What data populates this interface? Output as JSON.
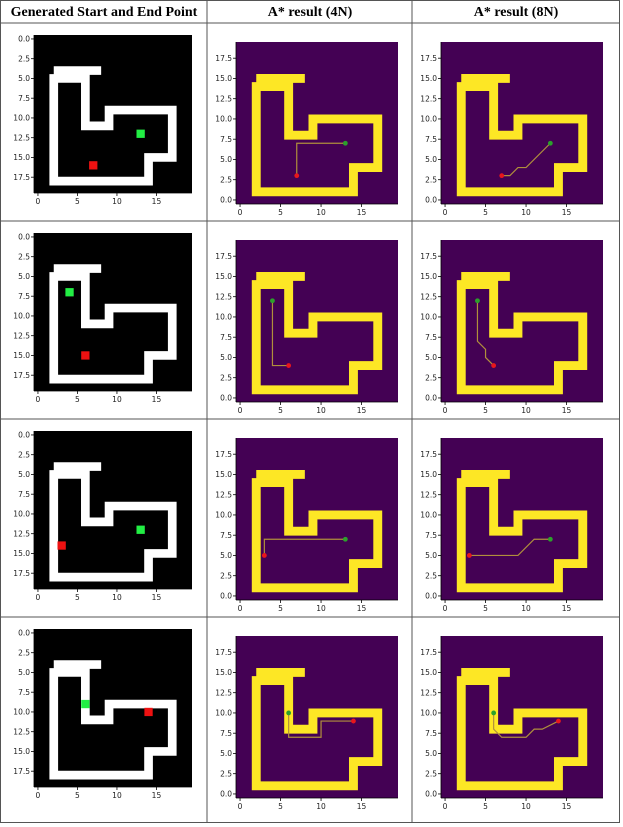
{
  "headers": [
    "Generated Start and End Point",
    "A* result (4N)",
    "A* result (8N)"
  ],
  "colors": {
    "gen_background": "#000000",
    "gen_wall": "#ffffff",
    "start_color": "#22ee44",
    "end_color": "#ee1111",
    "result_background": "#440154",
    "result_wall": "#fde725",
    "path_color": "#b08f3c",
    "result_start_color": "#2ca02c",
    "result_end_color": "#e8161c"
  },
  "chart_data": [
    {
      "type": "scatter",
      "title": "Generated Start and End Point",
      "axes": [
        {
          "name": "x",
          "ticks": [
            0,
            5,
            10,
            15
          ],
          "range": [
            -0.5,
            19.5
          ]
        },
        {
          "name": "y",
          "ticks": [
            "0.0",
            "2.5",
            "5.0",
            "7.5",
            "10.0",
            "12.5",
            "15.0",
            "17.5"
          ],
          "range": [
            19.5,
            -0.5
          ],
          "inverted": true
        }
      ],
      "walls_outline": [
        [
          [
            2,
            5
          ],
          [
            6,
            5
          ],
          [
            6,
            11
          ],
          [
            9,
            11
          ],
          [
            9,
            9
          ],
          [
            17,
            9
          ],
          [
            17,
            15
          ],
          [
            14,
            15
          ],
          [
            14,
            18
          ],
          [
            2,
            18
          ]
        ],
        [
          [
            2,
            4
          ],
          [
            8,
            4
          ]
        ]
      ],
      "rows": [
        {
          "start": [
            13,
            12
          ],
          "end": [
            7,
            16
          ]
        },
        {
          "start": [
            4,
            7
          ],
          "end": [
            6,
            15
          ]
        },
        {
          "start": [
            13,
            12
          ],
          "end": [
            3,
            14
          ]
        },
        {
          "start": [
            6,
            9
          ],
          "end": [
            14,
            10
          ]
        }
      ]
    },
    {
      "type": "line",
      "title": "A* result (4N)",
      "axes": [
        {
          "name": "x",
          "ticks": [
            0,
            5,
            10,
            15
          ],
          "range": [
            -0.5,
            19.5
          ]
        },
        {
          "name": "y",
          "ticks": [
            "0.0",
            "2.5",
            "5.0",
            "7.5",
            "10.0",
            "12.5",
            "15.0",
            "17.5"
          ],
          "range": [
            -0.5,
            19.5
          ]
        }
      ],
      "series": [
        {
          "points": [
            [
              13,
              7
            ],
            [
              7,
              7
            ],
            [
              7,
              3
            ]
          ],
          "start": [
            13,
            7
          ],
          "end": [
            7,
            3
          ]
        },
        {
          "points": [
            [
              4,
              12
            ],
            [
              4,
              4
            ],
            [
              6,
              4
            ]
          ],
          "start": [
            4,
            12
          ],
          "end": [
            6,
            4
          ]
        },
        {
          "points": [
            [
              13,
              7
            ],
            [
              3,
              7
            ],
            [
              3,
              5
            ]
          ],
          "start": [
            13,
            7
          ],
          "end": [
            3,
            5
          ]
        },
        {
          "points": [
            [
              6,
              10
            ],
            [
              6,
              7
            ],
            [
              10,
              7
            ],
            [
              10,
              9
            ],
            [
              14,
              9
            ]
          ],
          "start": [
            6,
            10
          ],
          "end": [
            14,
            9
          ]
        }
      ]
    },
    {
      "type": "line",
      "title": "A* result (8N)",
      "axes": [
        {
          "name": "x",
          "ticks": [
            0,
            5,
            10,
            15
          ],
          "range": [
            -0.5,
            19.5
          ]
        },
        {
          "name": "y",
          "ticks": [
            "0.0",
            "2.5",
            "5.0",
            "7.5",
            "10.0",
            "12.5",
            "15.0",
            "17.5"
          ],
          "range": [
            -0.5,
            19.5
          ]
        }
      ],
      "series": [
        {
          "points": [
            [
              13,
              7
            ],
            [
              10,
              4
            ],
            [
              9,
              4
            ],
            [
              8,
              3
            ],
            [
              7,
              3
            ]
          ],
          "start": [
            13,
            7
          ],
          "end": [
            7,
            3
          ]
        },
        {
          "points": [
            [
              4,
              12
            ],
            [
              4,
              7
            ],
            [
              5,
              6
            ],
            [
              5,
              5
            ],
            [
              6,
              4
            ]
          ],
          "start": [
            4,
            12
          ],
          "end": [
            6,
            4
          ]
        },
        {
          "points": [
            [
              13,
              7
            ],
            [
              11,
              7
            ],
            [
              9,
              5
            ],
            [
              3,
              5
            ]
          ],
          "start": [
            13,
            7
          ],
          "end": [
            3,
            5
          ]
        },
        {
          "points": [
            [
              6,
              10
            ],
            [
              6,
              8
            ],
            [
              7,
              7
            ],
            [
              10,
              7
            ],
            [
              11,
              8
            ],
            [
              12,
              8
            ],
            [
              14,
              9
            ]
          ],
          "start": [
            6,
            10
          ],
          "end": [
            14,
            9
          ]
        }
      ]
    }
  ]
}
